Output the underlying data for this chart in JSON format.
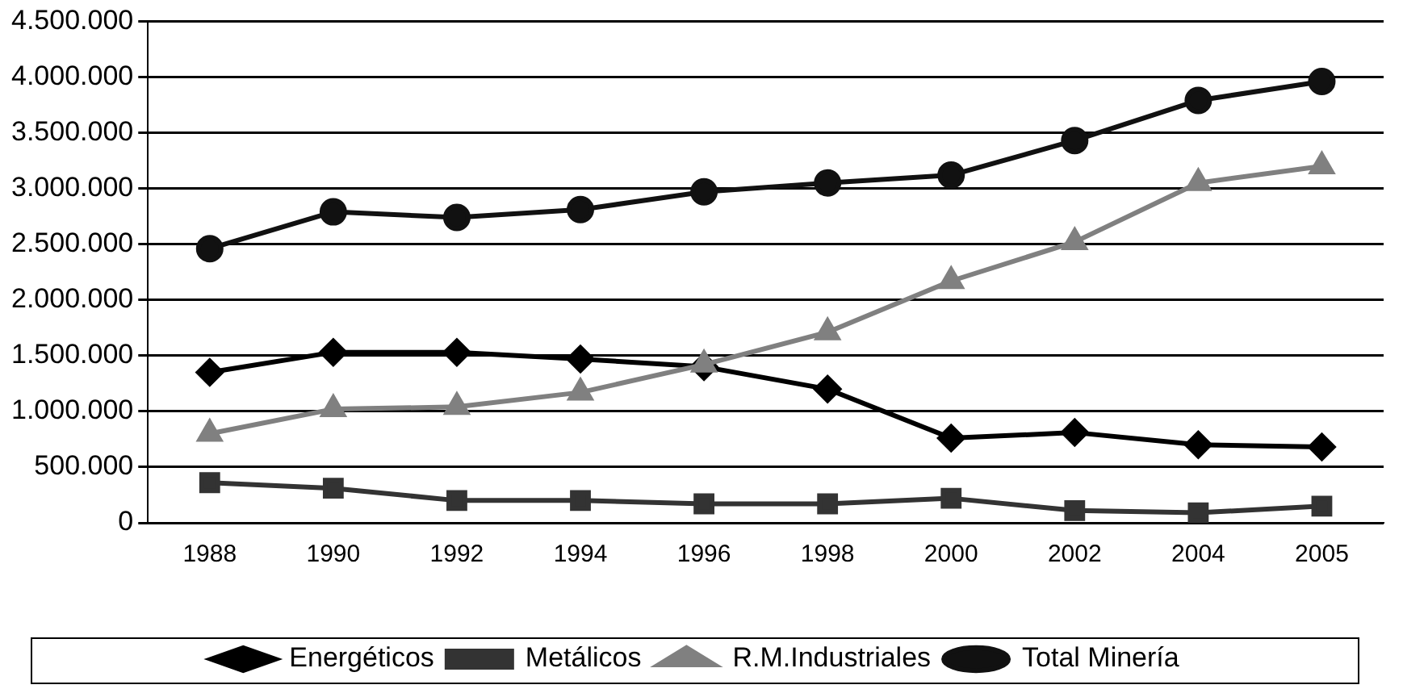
{
  "chart_data": {
    "type": "line",
    "categories": [
      "1988",
      "1990",
      "1992",
      "1994",
      "1996",
      "1998",
      "2000",
      "2002",
      "2004",
      "2005"
    ],
    "series": [
      {
        "name": "Energéticos",
        "color": "#000000",
        "marker": "diamond",
        "values": [
          1350000,
          1530000,
          1530000,
          1470000,
          1400000,
          1200000,
          760000,
          810000,
          700000,
          680000
        ]
      },
      {
        "name": "Metálicos",
        "color": "#333333",
        "marker": "square",
        "values": [
          360000,
          310000,
          200000,
          200000,
          170000,
          170000,
          220000,
          110000,
          90000,
          150000
        ]
      },
      {
        "name": "R.M.Industriales",
        "color": "#808080",
        "marker": "triangle",
        "values": [
          800000,
          1020000,
          1040000,
          1170000,
          1420000,
          1710000,
          2170000,
          2520000,
          3050000,
          3200000
        ]
      },
      {
        "name": "Total Minería",
        "color": "#111111",
        "marker": "circle",
        "values": [
          2460000,
          2790000,
          2740000,
          2810000,
          2970000,
          3050000,
          3120000,
          3430000,
          3790000,
          3960000
        ]
      }
    ],
    "ylim": [
      0,
      4500000
    ],
    "yticks": [
      {
        "value": 0,
        "label": "0"
      },
      {
        "value": 500000,
        "label": "500.000"
      },
      {
        "value": 1000000,
        "label": "1.000.000"
      },
      {
        "value": 1500000,
        "label": "1.500.000"
      },
      {
        "value": 2000000,
        "label": "2.000.000"
      },
      {
        "value": 2500000,
        "label": "2.500.000"
      },
      {
        "value": 3000000,
        "label": "3.000.000"
      },
      {
        "value": 3500000,
        "label": "3.500.000"
      },
      {
        "value": 4000000,
        "label": "4.000.000"
      },
      {
        "value": 4500000,
        "label": "4.500.000"
      }
    ],
    "grid": "y",
    "legend": "bottom",
    "line_style": "solid"
  }
}
